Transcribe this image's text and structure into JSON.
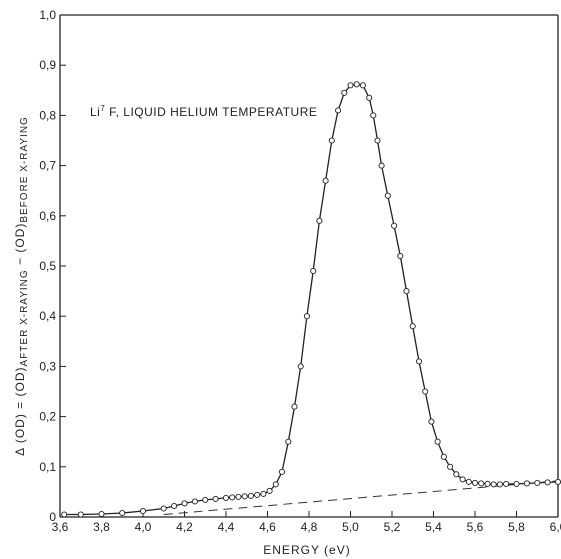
{
  "chart_data": {
    "type": "line",
    "xlabel": "ENERGY (eV)",
    "ylabel_parts": {
      "lhs": "Δ (OD) = (OD)",
      "after_sub": "AFTER X-RAYING",
      "minus": " − (OD)",
      "before_sub": "BEFORE X-RAYING"
    },
    "xlim": [
      3.6,
      6.0
    ],
    "ylim": [
      0,
      1.0
    ],
    "xticks": [
      3.6,
      3.8,
      4.0,
      4.2,
      4.4,
      4.6,
      4.8,
      5.0,
      5.2,
      5.4,
      5.6,
      5.8,
      6.0
    ],
    "xtick_labels": [
      "3,6",
      "3,8",
      "4,0",
      "4,2",
      "4,4",
      "4,6",
      "4,8",
      "5,0",
      "5,2",
      "5,4",
      "5,6",
      "5,8",
      "6,0"
    ],
    "yticks": [
      0,
      0.1,
      0.2,
      0.3,
      0.4,
      0.5,
      0.6,
      0.7,
      0.8,
      0.9,
      1.0
    ],
    "ytick_labels": [
      "0",
      "0,1",
      "0,2",
      "0,3",
      "0,4",
      "0,5",
      "0,6",
      "0,7",
      "0,8",
      "0,9",
      "1,0"
    ],
    "annotation": {
      "prefix": "Li",
      "sup": "7",
      "rest": " F, LIQUID HELIUM TEMPERATURE"
    },
    "grid": false,
    "series": [
      {
        "style": "solid line with open circles",
        "x": [
          3.62,
          3.7,
          3.8,
          3.9,
          4.0,
          4.1,
          4.15,
          4.2,
          4.25,
          4.3,
          4.35,
          4.4,
          4.43,
          4.46,
          4.49,
          4.52,
          4.55,
          4.58,
          4.61,
          4.64,
          4.67,
          4.7,
          4.73,
          4.76,
          4.79,
          4.82,
          4.85,
          4.88,
          4.91,
          4.94,
          4.97,
          5.0,
          5.03,
          5.06,
          5.09,
          5.11,
          5.13,
          5.15,
          5.18,
          5.21,
          5.24,
          5.27,
          5.3,
          5.33,
          5.36,
          5.39,
          5.42,
          5.45,
          5.48,
          5.51,
          5.54,
          5.57,
          5.6,
          5.63,
          5.66,
          5.69,
          5.72,
          5.75,
          5.8,
          5.85,
          5.9,
          5.95,
          6.0
        ],
        "y": [
          0.005,
          0.005,
          0.006,
          0.008,
          0.012,
          0.017,
          0.022,
          0.027,
          0.031,
          0.034,
          0.036,
          0.038,
          0.039,
          0.04,
          0.041,
          0.042,
          0.044,
          0.046,
          0.052,
          0.065,
          0.09,
          0.15,
          0.22,
          0.3,
          0.4,
          0.49,
          0.59,
          0.67,
          0.75,
          0.81,
          0.845,
          0.86,
          0.862,
          0.86,
          0.835,
          0.8,
          0.75,
          0.7,
          0.64,
          0.58,
          0.52,
          0.45,
          0.38,
          0.31,
          0.25,
          0.19,
          0.15,
          0.12,
          0.1,
          0.085,
          0.075,
          0.07,
          0.068,
          0.067,
          0.066,
          0.065,
          0.065,
          0.066,
          0.066,
          0.067,
          0.068,
          0.069,
          0.07
        ]
      },
      {
        "style": "dashed baseline",
        "x": [
          4.1,
          6.0
        ],
        "y": [
          0.005,
          0.072
        ]
      }
    ]
  }
}
